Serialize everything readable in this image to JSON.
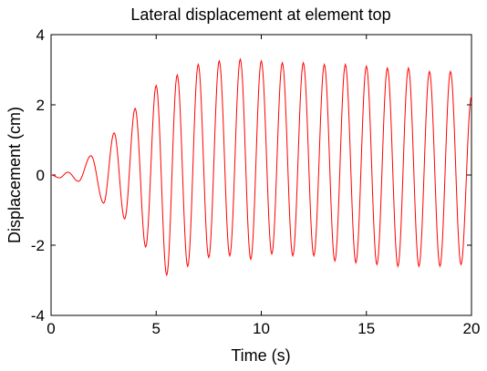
{
  "chart_data": {
    "type": "line",
    "title": "Lateral displacement at element top",
    "xlabel": "Time (s)",
    "ylabel": "Displacement (cm)",
    "xlim": [
      0,
      20
    ],
    "ylim": [
      -4,
      4
    ],
    "xticks": [
      "0",
      "5",
      "10",
      "15",
      "20"
    ],
    "yticks": [
      "4",
      "2",
      "0",
      "-2",
      "-4"
    ],
    "grid": false,
    "series": [
      {
        "color": "#ff0000",
        "x": [
          0,
          0.4,
          0.8,
          1.3,
          1.9,
          2.5,
          3.0,
          3.5,
          4.0,
          4.5,
          5.0,
          5.5,
          6.0,
          6.5,
          7.0,
          7.5,
          8.0,
          8.5,
          9.0,
          9.5,
          10.0,
          10.5,
          11.0,
          11.5,
          12.0,
          12.5,
          13.0,
          13.5,
          14.0,
          14.5,
          15.0,
          15.5,
          16.0,
          16.5,
          17.0,
          17.5,
          18.0,
          18.5,
          19.0,
          19.5,
          20.0
        ],
        "y": [
          0.0,
          -0.08,
          0.08,
          -0.18,
          0.55,
          -0.8,
          1.2,
          -1.25,
          1.9,
          -2.05,
          2.55,
          -2.85,
          2.85,
          -2.6,
          3.15,
          -2.35,
          3.25,
          -2.3,
          3.3,
          -2.4,
          3.25,
          -2.25,
          3.2,
          -2.3,
          3.2,
          -2.3,
          3.15,
          -2.45,
          3.15,
          -2.5,
          3.1,
          -2.55,
          3.05,
          -2.6,
          3.05,
          -2.6,
          2.95,
          -2.6,
          2.95,
          -2.55,
          2.25
        ]
      }
    ]
  }
}
